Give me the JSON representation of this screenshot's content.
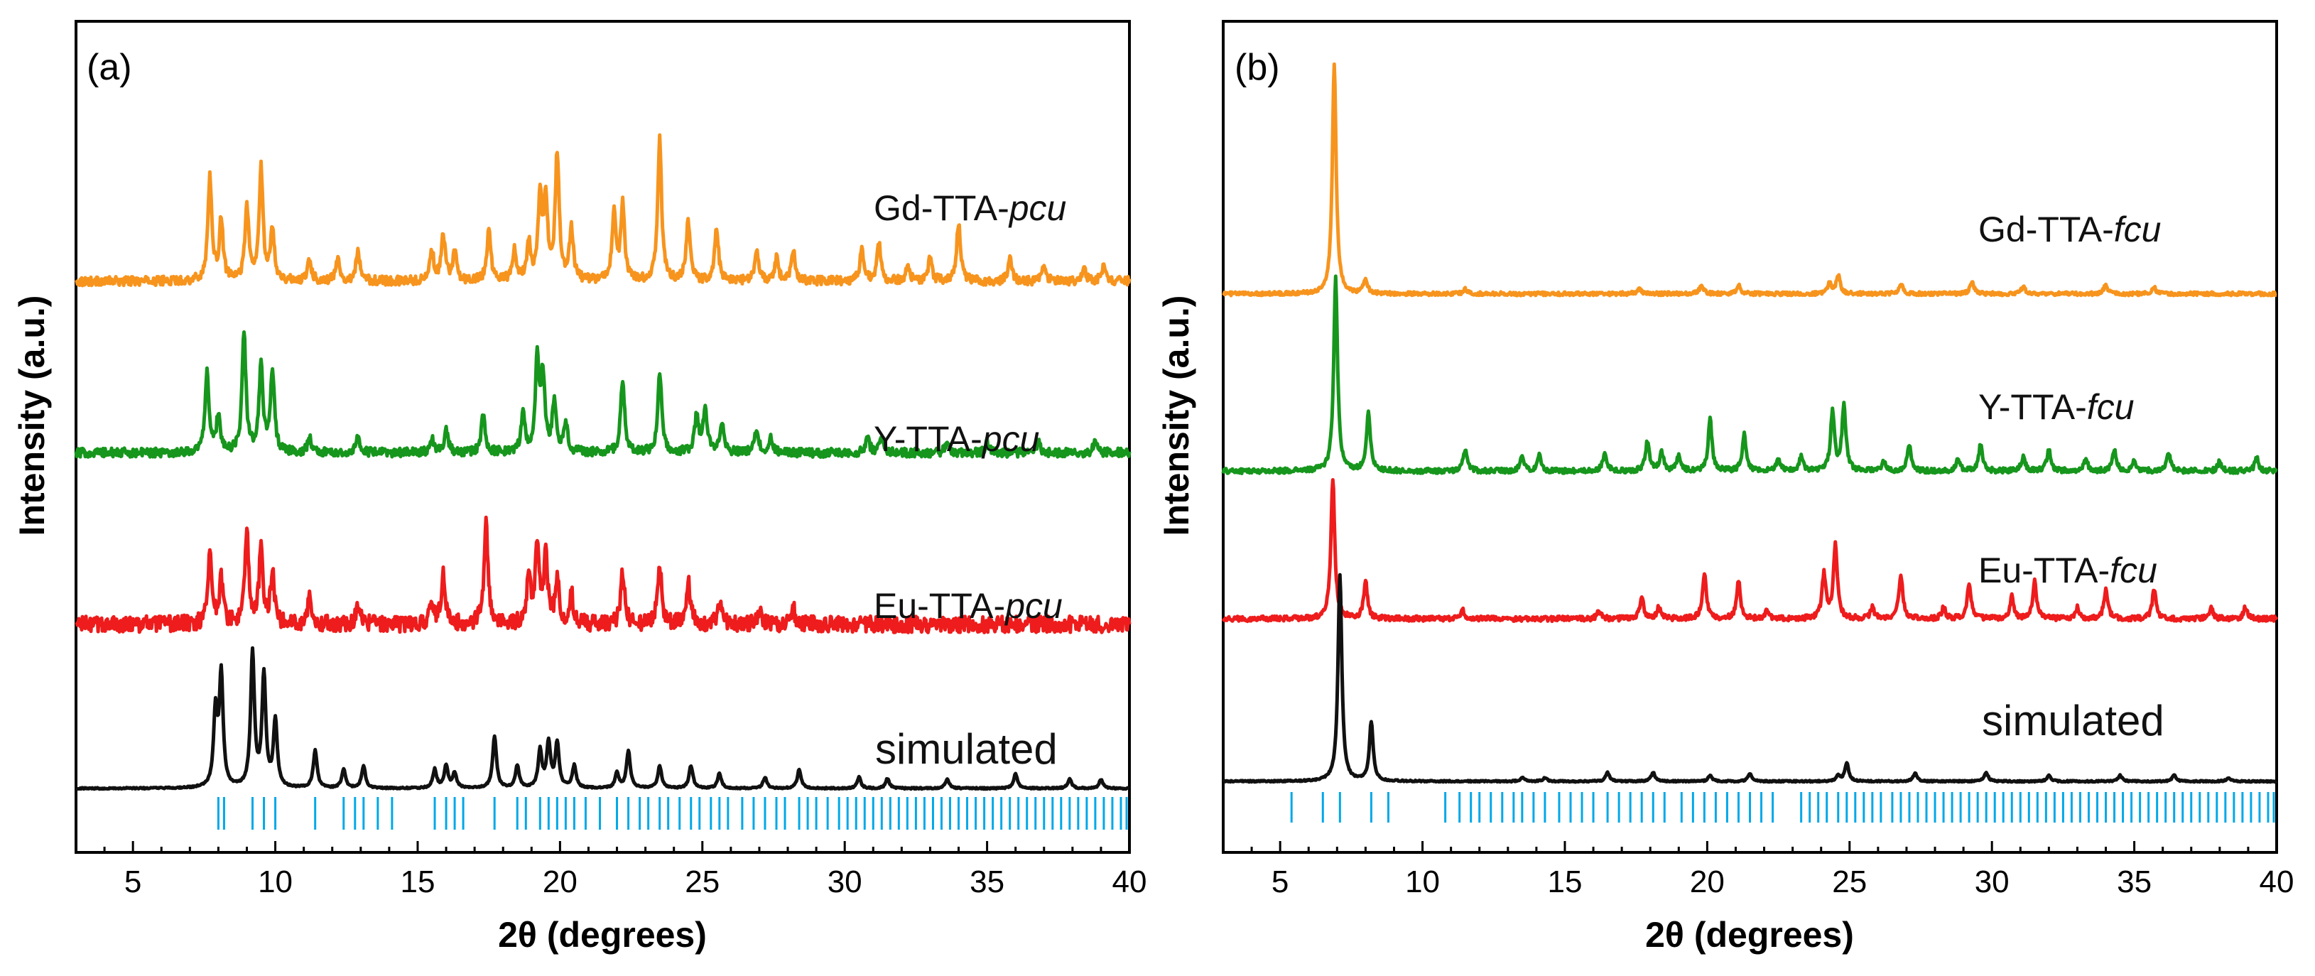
{
  "chart_data": [
    {
      "type": "line",
      "panel_label": "(a)",
      "xlabel": "2θ (degrees)",
      "ylabel": "Intensity (a.u.)",
      "xlim": [
        3,
        40
      ],
      "xticks": [
        5,
        10,
        15,
        20,
        25,
        30,
        35,
        40
      ],
      "ylim": [
        0,
        100
      ],
      "yticks": "none",
      "series": [
        {
          "name": "Gd-TTA-pcu",
          "name_prefix": "Gd-TTA-",
          "name_italic": "pcu",
          "color": "#f7941d",
          "baseline": 68,
          "noise": 0.6,
          "peaks": [
            [
              7.7,
              14
            ],
            [
              8.1,
              8
            ],
            [
              9.0,
              10
            ],
            [
              9.5,
              15
            ],
            [
              9.9,
              7
            ],
            [
              11.2,
              3
            ],
            [
              12.2,
              3
            ],
            [
              12.9,
              4
            ],
            [
              15.5,
              4
            ],
            [
              15.9,
              6
            ],
            [
              16.3,
              4
            ],
            [
              17.5,
              7
            ],
            [
              18.4,
              4
            ],
            [
              18.9,
              5
            ],
            [
              19.3,
              11
            ],
            [
              19.5,
              10
            ],
            [
              19.9,
              17
            ],
            [
              20.4,
              7
            ],
            [
              21.9,
              9
            ],
            [
              22.2,
              10
            ],
            [
              23.5,
              19
            ],
            [
              24.5,
              8
            ],
            [
              25.5,
              7
            ],
            [
              26.9,
              4
            ],
            [
              27.6,
              3
            ],
            [
              28.2,
              4
            ],
            [
              30.6,
              4
            ],
            [
              31.2,
              5
            ],
            [
              32.2,
              2
            ],
            [
              33.0,
              3
            ],
            [
              34.0,
              8
            ],
            [
              35.8,
              3
            ],
            [
              37.0,
              2
            ],
            [
              38.4,
              2
            ],
            [
              39.1,
              2
            ]
          ]
        },
        {
          "name": "Y-TTA-pcu",
          "name_prefix": "Y-TTA-",
          "name_italic": "pcu",
          "color": "#16961c",
          "baseline": 45,
          "noise": 0.6,
          "peaks": [
            [
              7.6,
              11
            ],
            [
              8.0,
              5
            ],
            [
              8.9,
              16
            ],
            [
              9.5,
              12
            ],
            [
              9.9,
              11
            ],
            [
              11.2,
              2
            ],
            [
              12.9,
              2
            ],
            [
              15.5,
              2
            ],
            [
              16.0,
              3
            ],
            [
              17.3,
              5
            ],
            [
              18.7,
              5
            ],
            [
              19.2,
              12
            ],
            [
              19.4,
              10
            ],
            [
              19.8,
              7
            ],
            [
              20.2,
              4
            ],
            [
              22.2,
              10
            ],
            [
              23.5,
              11
            ],
            [
              24.8,
              5
            ],
            [
              25.1,
              6
            ],
            [
              25.7,
              4
            ],
            [
              26.9,
              3
            ],
            [
              27.4,
              2
            ],
            [
              30.8,
              2
            ],
            [
              31.3,
              2
            ],
            [
              33.6,
              1.5
            ],
            [
              35.0,
              1.5
            ],
            [
              36.8,
              1.5
            ],
            [
              38.8,
              1.5
            ]
          ]
        },
        {
          "name": "Eu-TTA-pcu",
          "name_prefix": "Eu-TTA-",
          "name_italic": "pcu",
          "color": "#ee1c1c",
          "baseline": 22,
          "noise": 1.1,
          "peaks": [
            [
              7.7,
              10
            ],
            [
              8.1,
              6
            ],
            [
              9.0,
              12
            ],
            [
              9.5,
              10
            ],
            [
              9.9,
              7
            ],
            [
              11.2,
              4
            ],
            [
              12.9,
              3
            ],
            [
              15.5,
              3
            ],
            [
              15.9,
              7
            ],
            [
              17.4,
              14
            ],
            [
              18.9,
              6
            ],
            [
              19.2,
              11
            ],
            [
              19.5,
              9
            ],
            [
              19.9,
              6
            ],
            [
              20.4,
              4
            ],
            [
              22.2,
              7
            ],
            [
              23.5,
              8
            ],
            [
              24.5,
              6
            ],
            [
              25.6,
              3
            ],
            [
              27.0,
              2
            ],
            [
              28.2,
              2
            ]
          ]
        },
        {
          "name": "simulated",
          "name_prefix": "simulated",
          "name_italic": "",
          "color": "#111111",
          "baseline": 0,
          "noise": 0.1,
          "peaks": [
            [
              7.9,
              10
            ],
            [
              8.1,
              15
            ],
            [
              9.2,
              18
            ],
            [
              9.6,
              15
            ],
            [
              10.0,
              9
            ],
            [
              11.4,
              5
            ],
            [
              12.4,
              2.5
            ],
            [
              13.1,
              3
            ],
            [
              15.6,
              2.5
            ],
            [
              16.0,
              3
            ],
            [
              16.3,
              2
            ],
            [
              17.7,
              7
            ],
            [
              18.5,
              3
            ],
            [
              19.3,
              5
            ],
            [
              19.6,
              6
            ],
            [
              19.9,
              6
            ],
            [
              20.5,
              3
            ],
            [
              22.0,
              2
            ],
            [
              22.4,
              5
            ],
            [
              23.5,
              3
            ],
            [
              24.6,
              3
            ],
            [
              25.6,
              2
            ],
            [
              27.2,
              1.5
            ],
            [
              28.4,
              2.5
            ],
            [
              30.5,
              1.5
            ],
            [
              31.5,
              1.3
            ],
            [
              33.6,
              1.3
            ],
            [
              36.0,
              2
            ],
            [
              37.9,
              1.3
            ],
            [
              39.0,
              1.2
            ]
          ]
        }
      ],
      "reference_ticks": {
        "color": "#00a8e8",
        "positions": [
          8.0,
          8.2,
          9.2,
          9.6,
          10.0,
          11.4,
          12.4,
          12.8,
          13.1,
          13.6,
          14.1,
          15.6,
          16.0,
          16.3,
          16.6,
          17.7,
          18.5,
          18.8,
          19.3,
          19.6,
          19.9,
          20.2,
          20.5,
          20.9,
          21.4,
          22.0,
          22.4,
          22.8,
          23.1,
          23.5,
          23.8,
          24.2,
          24.6,
          24.9,
          25.3,
          25.6,
          25.9,
          26.4,
          26.8,
          27.2,
          27.6,
          27.9,
          28.4,
          28.7,
          29.0,
          29.4,
          29.8,
          30.1,
          30.4,
          30.7,
          31.0,
          31.3,
          31.6,
          31.9,
          32.2,
          32.5,
          32.8,
          33.1,
          33.4,
          33.7,
          34.0,
          34.3,
          34.6,
          34.9,
          35.2,
          35.5,
          35.8,
          36.1,
          36.4,
          36.7,
          37.0,
          37.3,
          37.6,
          37.9,
          38.2,
          38.5,
          38.8,
          39.1,
          39.4,
          39.7,
          39.9
        ]
      }
    },
    {
      "type": "line",
      "panel_label": "(b)",
      "xlabel": "2θ (degrees)",
      "ylabel": "Intensity (a.u.)",
      "xlim": [
        3,
        40
      ],
      "xticks": [
        5,
        10,
        15,
        20,
        25,
        30,
        35,
        40
      ],
      "ylim": [
        0,
        100
      ],
      "yticks": "none",
      "series": [
        {
          "name": "Gd-TTA-fcu",
          "name_prefix": "Gd-TTA-",
          "name_italic": "fcu",
          "color": "#f7941d",
          "baseline": 66,
          "noise": 0.25,
          "peaks": [
            [
              6.9,
              31
            ],
            [
              8.0,
              2
            ],
            [
              11.5,
              0.6
            ],
            [
              17.6,
              0.8
            ],
            [
              19.8,
              1.2
            ],
            [
              21.1,
              1.2
            ],
            [
              24.3,
              1.5
            ],
            [
              24.6,
              2.5
            ],
            [
              26.8,
              1.4
            ],
            [
              29.3,
              1.6
            ],
            [
              31.1,
              1
            ],
            [
              34.0,
              1.2
            ],
            [
              35.7,
              0.8
            ]
          ]
        },
        {
          "name": "Y-TTA-fcu",
          "name_prefix": "Y-TTA-",
          "name_italic": "fcu",
          "color": "#16961c",
          "baseline": 42,
          "noise": 0.35,
          "peaks": [
            [
              6.95,
              26
            ],
            [
              8.1,
              8
            ],
            [
              11.5,
              3
            ],
            [
              13.5,
              2
            ],
            [
              14.1,
              2
            ],
            [
              16.4,
              2.5
            ],
            [
              17.9,
              4
            ],
            [
              18.4,
              2.5
            ],
            [
              19.0,
              2
            ],
            [
              20.1,
              7
            ],
            [
              21.3,
              5
            ],
            [
              22.5,
              1.5
            ],
            [
              23.3,
              2
            ],
            [
              24.4,
              8
            ],
            [
              24.8,
              9
            ],
            [
              26.2,
              1.5
            ],
            [
              27.1,
              3.5
            ],
            [
              28.8,
              1.5
            ],
            [
              29.6,
              3.5
            ],
            [
              31.1,
              2
            ],
            [
              32.0,
              3
            ],
            [
              33.3,
              1.5
            ],
            [
              34.3,
              3
            ],
            [
              35.0,
              1.5
            ],
            [
              36.2,
              2.5
            ],
            [
              38.0,
              1.3
            ],
            [
              39.3,
              1.8
            ]
          ]
        },
        {
          "name": "Eu-TTA-fcu",
          "name_prefix": "Eu-TTA-",
          "name_italic": "fcu",
          "color": "#ee1c1c",
          "baseline": 22,
          "noise": 0.35,
          "peaks": [
            [
              6.85,
              19
            ],
            [
              8.0,
              5
            ],
            [
              11.4,
              1.2
            ],
            [
              16.2,
              1
            ],
            [
              17.7,
              3
            ],
            [
              18.3,
              1.5
            ],
            [
              19.9,
              6
            ],
            [
              21.1,
              5
            ],
            [
              22.1,
              1.2
            ],
            [
              24.1,
              6
            ],
            [
              24.5,
              10
            ],
            [
              25.8,
              1.5
            ],
            [
              26.8,
              6
            ],
            [
              28.3,
              1.5
            ],
            [
              29.2,
              5
            ],
            [
              30.7,
              3
            ],
            [
              31.5,
              5
            ],
            [
              33.0,
              1.5
            ],
            [
              34.0,
              4
            ],
            [
              35.7,
              4
            ],
            [
              37.7,
              1.5
            ],
            [
              38.9,
              1.5
            ]
          ]
        },
        {
          "name": "simulated",
          "name_prefix": "simulated",
          "name_italic": "",
          "color": "#111111",
          "baseline": 0,
          "noise": 0.1,
          "peaks": [
            [
              7.1,
              28
            ],
            [
              8.2,
              8
            ],
            [
              13.5,
              0.5
            ],
            [
              14.3,
              0.5
            ],
            [
              16.5,
              1.2
            ],
            [
              18.1,
              1.2
            ],
            [
              20.1,
              0.8
            ],
            [
              21.5,
              1.1
            ],
            [
              24.6,
              0.8
            ],
            [
              24.9,
              2.5
            ],
            [
              27.3,
              1.1
            ],
            [
              29.8,
              1.2
            ],
            [
              32.0,
              0.8
            ],
            [
              34.5,
              0.8
            ],
            [
              36.4,
              0.8
            ],
            [
              38.3,
              0.5
            ]
          ]
        }
      ],
      "reference_ticks": {
        "color": "#00a8e8",
        "positions": [
          5.4,
          6.5,
          7.1,
          8.2,
          8.8,
          10.8,
          11.3,
          11.7,
          12.0,
          12.4,
          12.8,
          13.2,
          13.5,
          13.9,
          14.3,
          14.8,
          15.2,
          15.6,
          16.0,
          16.5,
          16.9,
          17.3,
          17.7,
          18.1,
          18.5,
          19.1,
          19.5,
          19.9,
          20.3,
          20.7,
          21.1,
          21.5,
          21.9,
          22.3,
          23.3,
          23.6,
          23.9,
          24.2,
          24.6,
          24.9,
          25.2,
          25.5,
          25.8,
          26.1,
          26.5,
          26.8,
          27.1,
          27.4,
          27.7,
          28.0,
          28.3,
          28.6,
          28.9,
          29.2,
          29.5,
          29.8,
          30.1,
          30.4,
          30.7,
          31.0,
          31.3,
          31.6,
          31.9,
          32.2,
          32.5,
          32.8,
          33.1,
          33.4,
          33.7,
          34.0,
          34.3,
          34.6,
          34.9,
          35.2,
          35.5,
          35.8,
          36.1,
          36.4,
          36.7,
          37.0,
          37.3,
          37.6,
          37.9,
          38.2,
          38.5,
          38.8,
          39.1,
          39.4,
          39.7,
          39.9
        ]
      }
    }
  ]
}
